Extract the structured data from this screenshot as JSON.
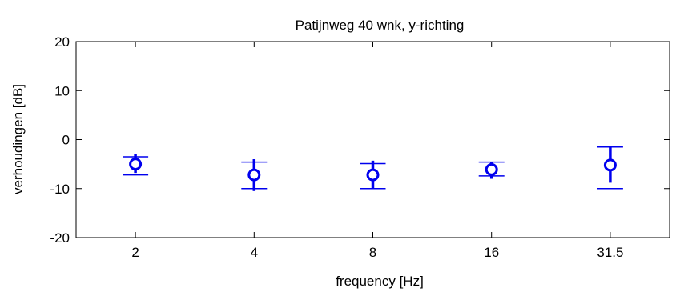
{
  "chart_data": {
    "type": "scatter",
    "title": "Patijnweg 40 wnk, y-richting",
    "xlabel": "frequency [Hz]",
    "ylabel": "verhoudingen [dB]",
    "categories": [
      "2",
      "4",
      "8",
      "16",
      "31.5"
    ],
    "ylim": [
      -20,
      20
    ],
    "yticks": [
      "-20",
      "-10",
      "0",
      "10",
      "20"
    ],
    "grid": false,
    "series_color": "#0000ee",
    "points": [
      {
        "x": "2",
        "center": -5.0,
        "bar_low": -7.2,
        "bar_high": -3.5,
        "thick_low": -6.8,
        "thick_high": -3.0
      },
      {
        "x": "4",
        "center": -7.2,
        "bar_low": -10.0,
        "bar_high": -4.6,
        "thick_low": -10.5,
        "thick_high": -4.0
      },
      {
        "x": "8",
        "center": -7.2,
        "bar_low": -10.0,
        "bar_high": -4.9,
        "thick_low": -10.0,
        "thick_high": -4.3
      },
      {
        "x": "16",
        "center": -6.1,
        "bar_low": -7.4,
        "bar_high": -4.6,
        "thick_low": -8.0,
        "thick_high": -4.6
      },
      {
        "x": "31.5",
        "center": -5.2,
        "bar_low": -10.0,
        "bar_high": -1.5,
        "thick_low": -8.8,
        "thick_high": -1.5
      }
    ]
  }
}
